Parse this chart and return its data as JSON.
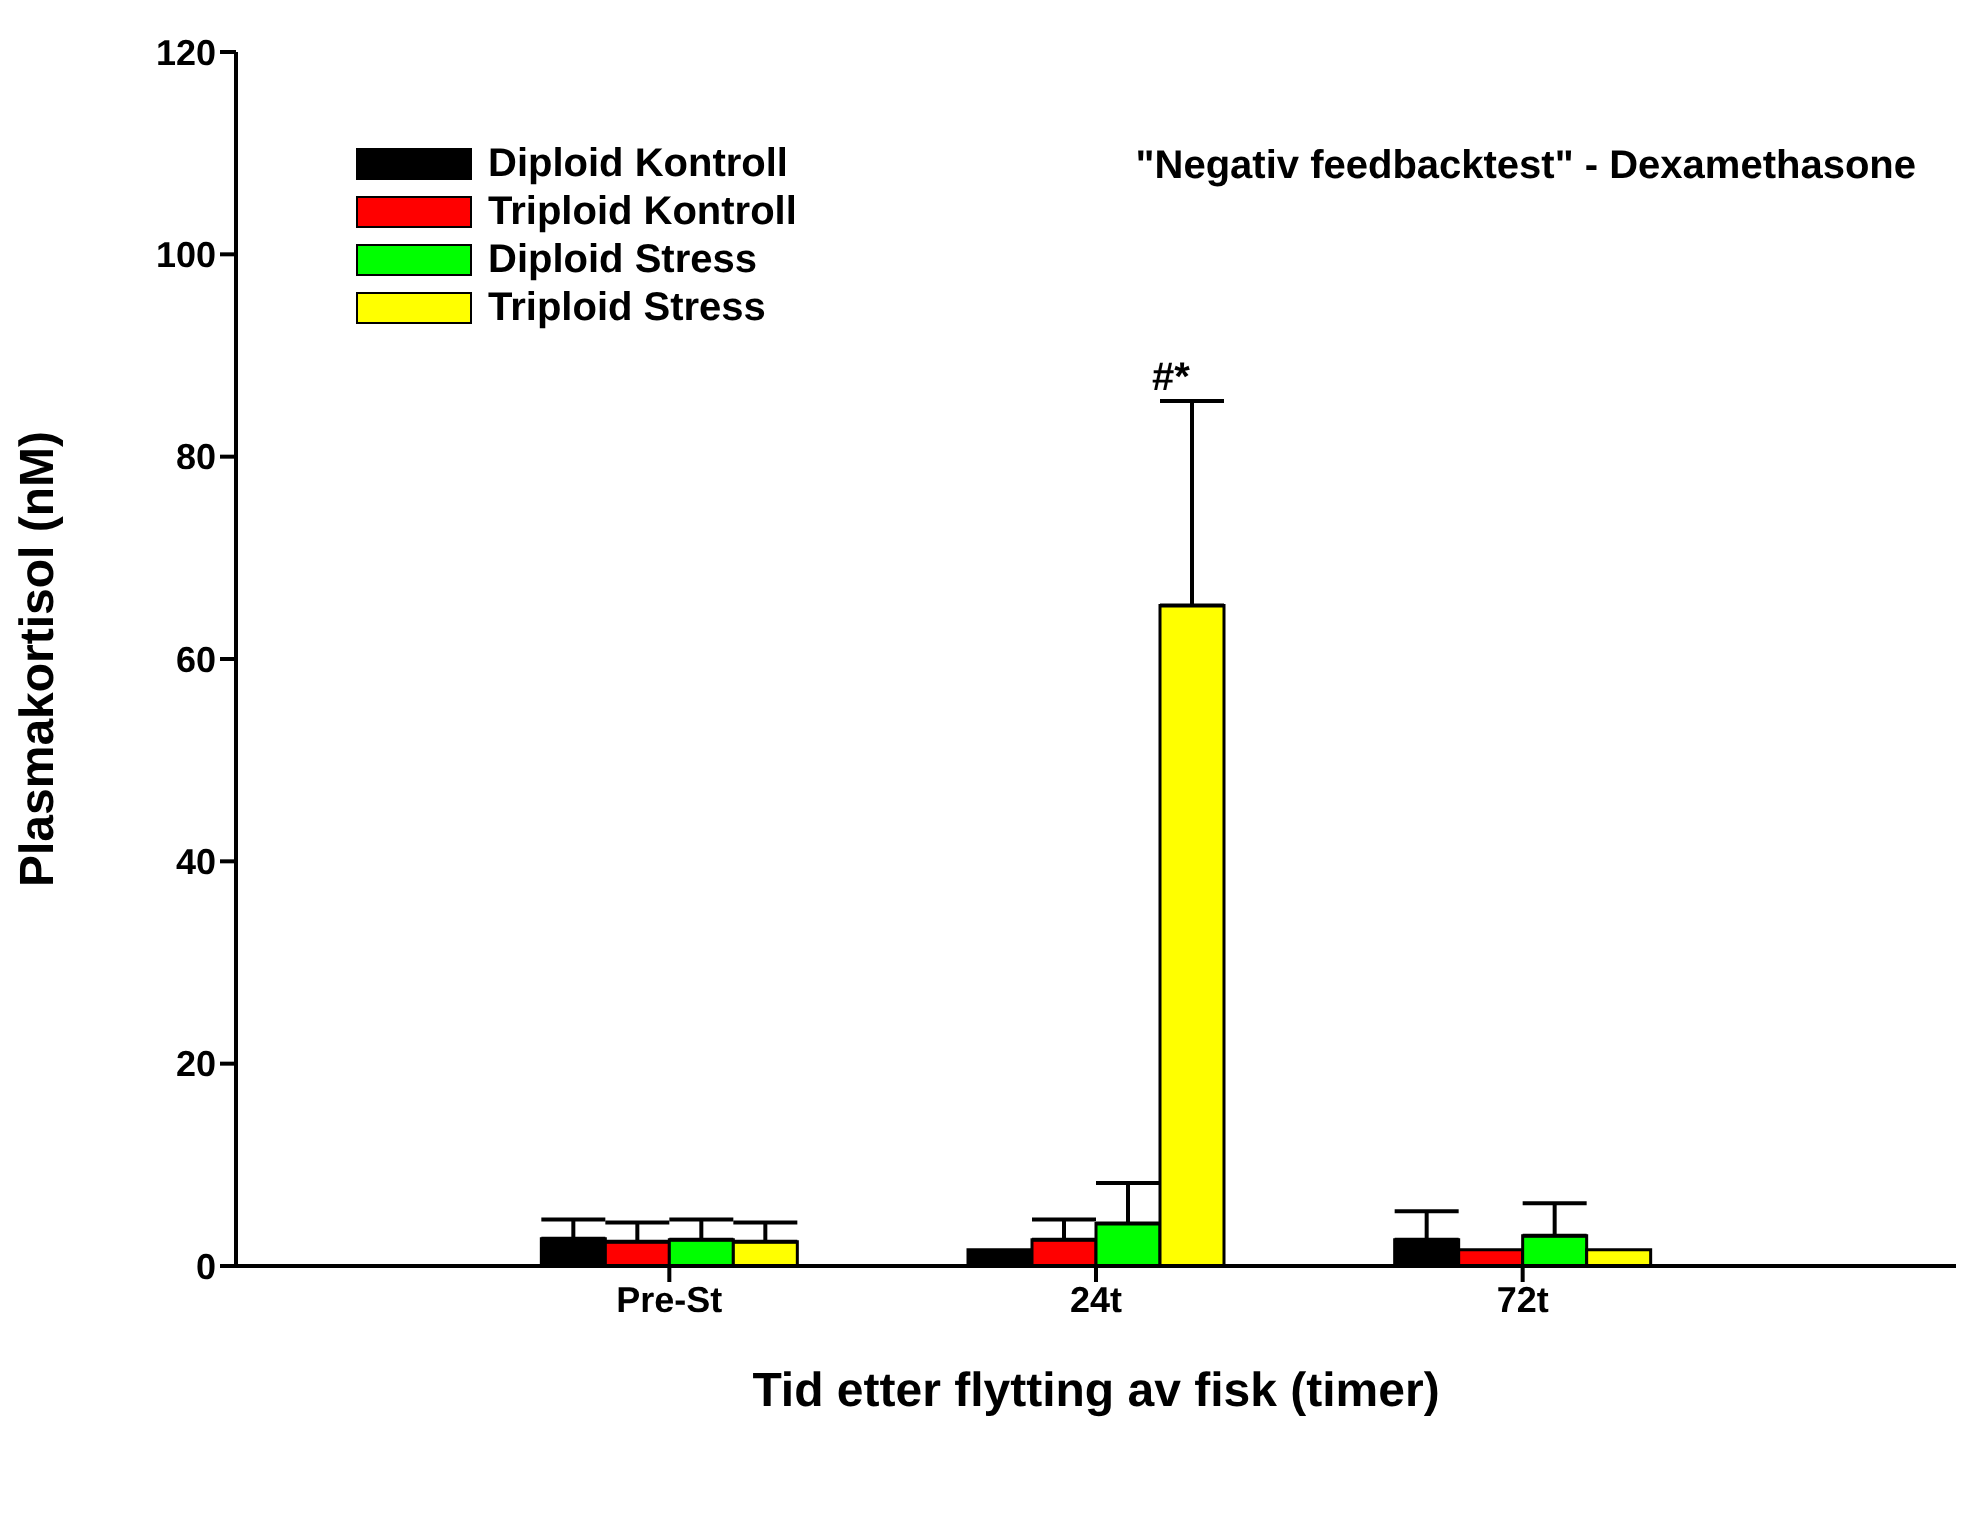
{
  "chart_data": {
    "type": "bar",
    "xlabel": "Tid etter flytting av fisk (timer)",
    "ylabel": "Plasmakortisol (nM)",
    "categories": [
      "Pre-St",
      "24t",
      "72t"
    ],
    "series": [
      {
        "name": "Diploid Kontroll",
        "color": "#000000",
        "values": [
          2.7,
          1.6,
          2.6
        ],
        "errors": [
          1.9,
          null,
          2.8
        ]
      },
      {
        "name": "Triploid Kontroll",
        "color": "#ff0000",
        "values": [
          2.4,
          2.6,
          1.6
        ],
        "errors": [
          1.9,
          2.0,
          null
        ]
      },
      {
        "name": "Diploid Stress",
        "color": "#00ff00",
        "values": [
          2.6,
          4.2,
          3.0
        ],
        "errors": [
          2.0,
          4.0,
          3.2
        ]
      },
      {
        "name": "Triploid Stress",
        "color": "#ffff00",
        "values": [
          2.4,
          65.3,
          1.6
        ],
        "errors": [
          1.9,
          20.2,
          null
        ]
      }
    ],
    "ylim": [
      0,
      120
    ],
    "yticks": [
      0,
      20,
      40,
      60,
      80,
      100,
      120
    ],
    "grid": false,
    "legend": "top left",
    "annotations": [
      "\"Negativ feedbacktest\" - Dexamethasone",
      "#*"
    ]
  }
}
